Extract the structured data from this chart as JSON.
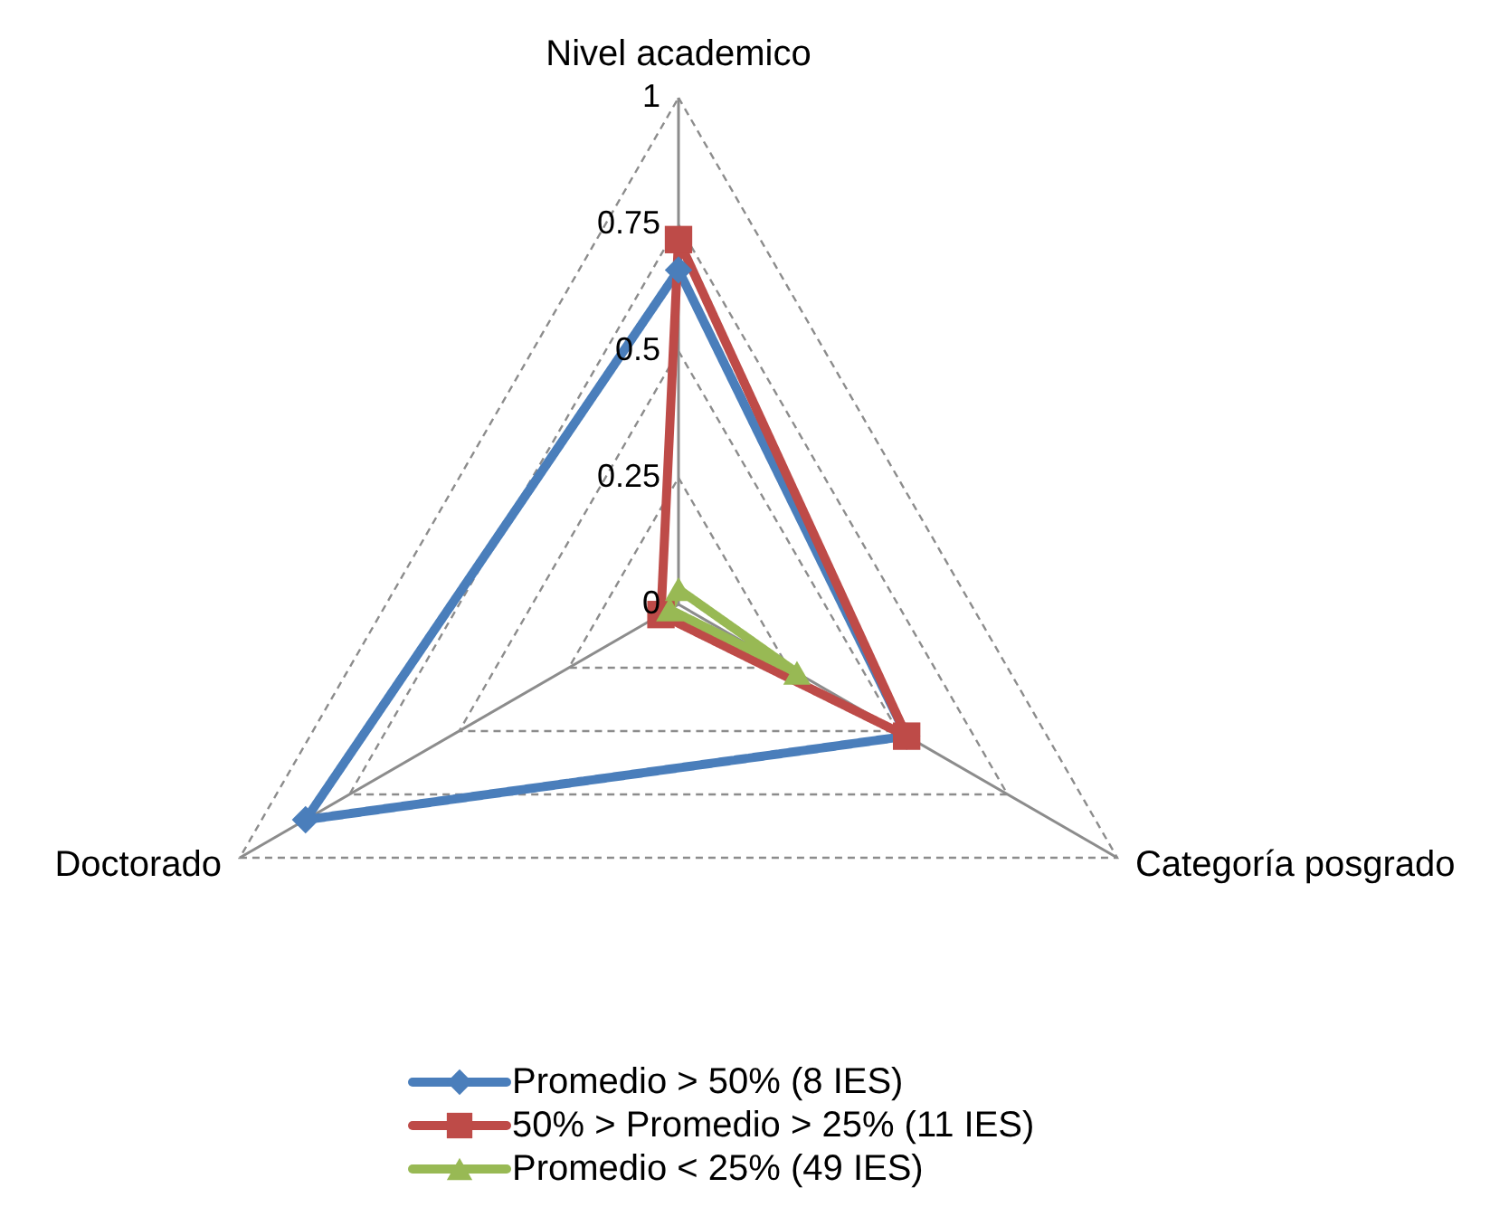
{
  "chart_data": {
    "type": "radar",
    "categories": [
      "Nivel academico",
      "Categoría posgrado",
      "Doctorado"
    ],
    "series": [
      {
        "name": "Promedio > 50% (8 IES)",
        "color": "#4a7ebb",
        "marker": "diamond",
        "values": [
          0.66,
          0.52,
          0.85
        ]
      },
      {
        "name": "50% > Promedio > 25% (11 IES)",
        "color": "#be4b48",
        "marker": "square",
        "values": [
          0.72,
          0.52,
          0.04
        ]
      },
      {
        "name": "Promedio < 25% (49 IES)",
        "color": "#98b954",
        "marker": "triangle",
        "values": [
          0.03,
          0.27,
          0.02
        ]
      }
    ],
    "ylim": [
      0,
      1
    ],
    "yticks": [
      0,
      0.25,
      0.5,
      0.75,
      1
    ],
    "grid": true,
    "legend": "bottom",
    "line_style": "solid"
  }
}
